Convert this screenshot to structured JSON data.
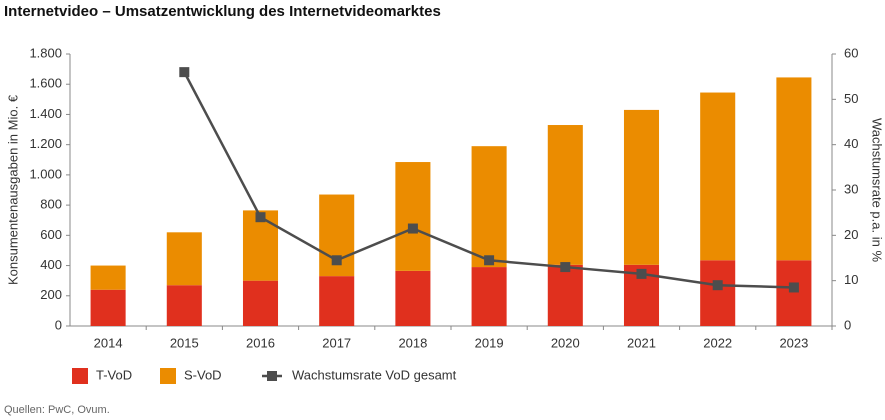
{
  "chart_data": {
    "type": "bar",
    "stacked": true,
    "title": "Internetvideo – Umsatzentwicklung des Internetvideomarktes",
    "ylabel": "Konsumentenausgaben in Mio. €",
    "y2label": "Wachstumsrate p.a. in %",
    "source": "Quellen: PwC, Ovum.",
    "categories": [
      "2014",
      "2015",
      "2016",
      "2017",
      "2018",
      "2019",
      "2020",
      "2021",
      "2022",
      "2023"
    ],
    "series": [
      {
        "name": "T-VoD",
        "color": "#e0301e",
        "values": [
          240,
          270,
          300,
          330,
          365,
          390,
          405,
          405,
          435,
          435
        ]
      },
      {
        "name": "S-VoD",
        "color": "#eb8c00",
        "values": [
          160,
          350,
          465,
          540,
          720,
          800,
          925,
          1025,
          1110,
          1210
        ]
      },
      {
        "name": "Wachstumsrate VoD gesamt",
        "color": "#4d4d4d",
        "type": "line",
        "axis": "y2",
        "values": [
          null,
          56,
          24,
          14.5,
          21.5,
          14.5,
          13,
          11.5,
          9,
          8.5
        ]
      }
    ],
    "ylim": [
      0,
      1800
    ],
    "yticks": [
      0,
      200,
      400,
      600,
      800,
      {
        "value": 1000,
        "label": "1.000"
      },
      {
        "value": 1200,
        "label": "1.200"
      },
      {
        "value": 1400,
        "label": "1.400"
      },
      {
        "value": 1600,
        "label": "1.600"
      },
      {
        "value": 1800,
        "label": "1.800"
      }
    ],
    "y2lim": [
      0,
      60
    ],
    "y2ticks": [
      0,
      10,
      20,
      30,
      40,
      50,
      60
    ]
  }
}
